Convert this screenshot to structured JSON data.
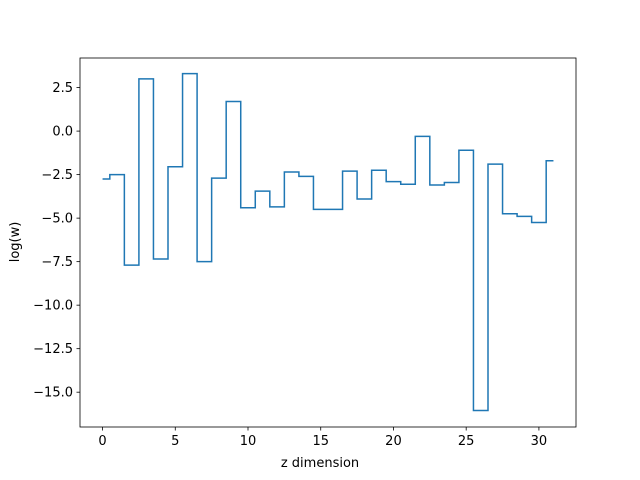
{
  "chart_data": {
    "type": "line",
    "drawstyle": "steps-mid",
    "title": "",
    "xlabel": "z dimension",
    "ylabel": "log(w)",
    "xlim": [
      -1.55,
      32.55
    ],
    "ylim": [
      -17.0,
      4.2
    ],
    "xticks": [
      0,
      5,
      10,
      15,
      20,
      25,
      30
    ],
    "xtick_labels": [
      "0",
      "5",
      "10",
      "15",
      "20",
      "25",
      "30"
    ],
    "yticks": [
      2.5,
      0.0,
      -2.5,
      -5.0,
      -7.5,
      -10.0,
      -12.5,
      -15.0
    ],
    "ytick_labels": [
      "2.5",
      "0.0",
      "−2.5",
      "−5.0",
      "−7.5",
      "−10.0",
      "−12.5",
      "−15.0"
    ],
    "grid": false,
    "legend": false,
    "series": [
      {
        "color": "#1f77b4",
        "x": [
          0,
          1,
          2,
          3,
          4,
          5,
          6,
          7,
          8,
          9,
          10,
          11,
          12,
          13,
          14,
          15,
          16,
          17,
          18,
          19,
          20,
          21,
          22,
          23,
          24,
          25,
          26,
          27,
          28,
          29,
          30,
          31
        ],
        "values": [
          -2.75,
          -2.5,
          -7.7,
          3.0,
          -7.35,
          -2.05,
          3.3,
          -7.5,
          -2.7,
          1.7,
          -4.4,
          -3.45,
          -4.35,
          -2.35,
          -2.6,
          -4.5,
          -4.5,
          -2.3,
          -3.9,
          -2.25,
          -2.9,
          -3.05,
          -0.3,
          -3.1,
          -2.95,
          -1.1,
          -16.05,
          -1.9,
          -4.75,
          -4.9,
          -5.25,
          -1.7
        ]
      }
    ]
  }
}
